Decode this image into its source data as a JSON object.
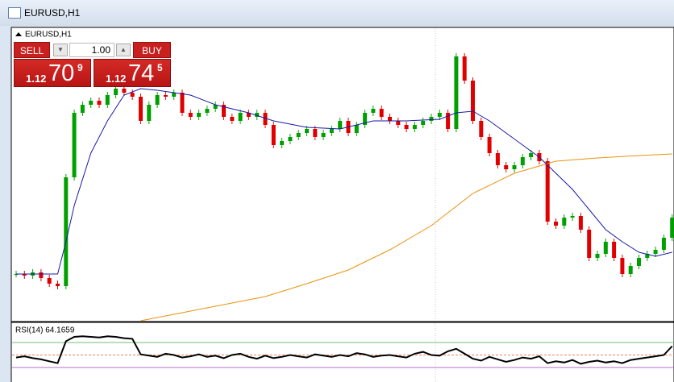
{
  "window": {
    "title": "EURUSD,H1"
  },
  "chart_data": {
    "type": "candlestick",
    "symbol": "EURUSD,H1",
    "trade_panel": {
      "sell": "SELL",
      "lot": "1.00",
      "buy": "BUY",
      "bid": {
        "prefix": "1.12",
        "big": "70",
        "pip": "9"
      },
      "ask": {
        "prefix": "1.12",
        "big": "74",
        "pip": "5"
      }
    },
    "close": [
      1.117,
      1.1169,
      1.1171,
      1.11675,
      1.1164,
      1.11625,
      1.123,
      1.127,
      1.1275,
      1.12775,
      1.1275,
      1.1281,
      1.1285,
      1.12825,
      1.128,
      1.1265,
      1.1275,
      1.1281,
      1.128,
      1.12825,
      1.127,
      1.12675,
      1.127,
      1.12725,
      1.1275,
      1.12675,
      1.1265,
      1.127,
      1.12675,
      1.127,
      1.12625,
      1.125,
      1.12525,
      1.1255,
      1.12575,
      1.126,
      1.1255,
      1.12575,
      1.126,
      1.1265,
      1.12575,
      1.12625,
      1.127,
      1.12725,
      1.12675,
      1.1265,
      1.12625,
      1.126,
      1.12625,
      1.1265,
      1.12675,
      1.127,
      1.126,
      1.1305,
      1.129,
      1.1265,
      1.1255,
      1.1245,
      1.12375,
      1.1235,
      1.12375,
      1.12425,
      1.1245,
      1.124,
      1.12025,
      1.12,
      1.1205,
      1.1206,
      1.11975,
      1.118,
      1.11825,
      1.119,
      1.118,
      1.117,
      1.1175,
      1.118,
      1.11825,
      1.1185,
      1.11925,
      1.1205
    ],
    "ma_fast": {
      "color": "#1a1aa6",
      "x": [
        0,
        5,
        6,
        7,
        9,
        11,
        13,
        15,
        17,
        21,
        24,
        28,
        31,
        35,
        39,
        43,
        47,
        51,
        53,
        55,
        57,
        59,
        61,
        63,
        65,
        67,
        69,
        71,
        73,
        75,
        77,
        79
      ],
      "values": [
        1.117,
        1.117,
        1.119,
        1.12125,
        1.1245,
        1.1265,
        1.1281,
        1.1285,
        1.1284,
        1.1281,
        1.1275,
        1.127,
        1.1265,
        1.1261,
        1.126,
        1.1265,
        1.1265,
        1.1266,
        1.127,
        1.1271,
        1.1265,
        1.12575,
        1.125,
        1.12425,
        1.12325,
        1.12225,
        1.121,
        1.11975,
        1.119,
        1.11835,
        1.1181,
        1.11835
      ]
    },
    "ma_slow": {
      "color": "#e8920e",
      "x": [
        15,
        20,
        25,
        30,
        35,
        40,
        45,
        50,
        55,
        60,
        65,
        70,
        75,
        79
      ],
      "values": [
        1.1141,
        1.1146,
        1.1151,
        1.1156,
        1.1164,
        1.11725,
        1.1185,
        1.12,
        1.122,
        1.12325,
        1.124,
        1.1242,
        1.12435,
        1.12445
      ]
    },
    "rsi_label": "RSI(14) 64.1659",
    "rsi_levels": [
      30,
      50,
      70
    ],
    "rsi": [
      46,
      48,
      45,
      43,
      40,
      37,
      72,
      79,
      80,
      79,
      78,
      80,
      79,
      77,
      76,
      51,
      49,
      47,
      52,
      50,
      46,
      48,
      51,
      47,
      49,
      45,
      50,
      52,
      47,
      44,
      49,
      45,
      47,
      50,
      48,
      46,
      51,
      49,
      47,
      50,
      48,
      53,
      51,
      47,
      49,
      50,
      48,
      46,
      52,
      55,
      50,
      49,
      56,
      60,
      52,
      44,
      41,
      47,
      43,
      39,
      42,
      46,
      44,
      48,
      37,
      40,
      38,
      42,
      36,
      39,
      41,
      38,
      40,
      37,
      42,
      44,
      46,
      48,
      50,
      64.1659
    ]
  }
}
